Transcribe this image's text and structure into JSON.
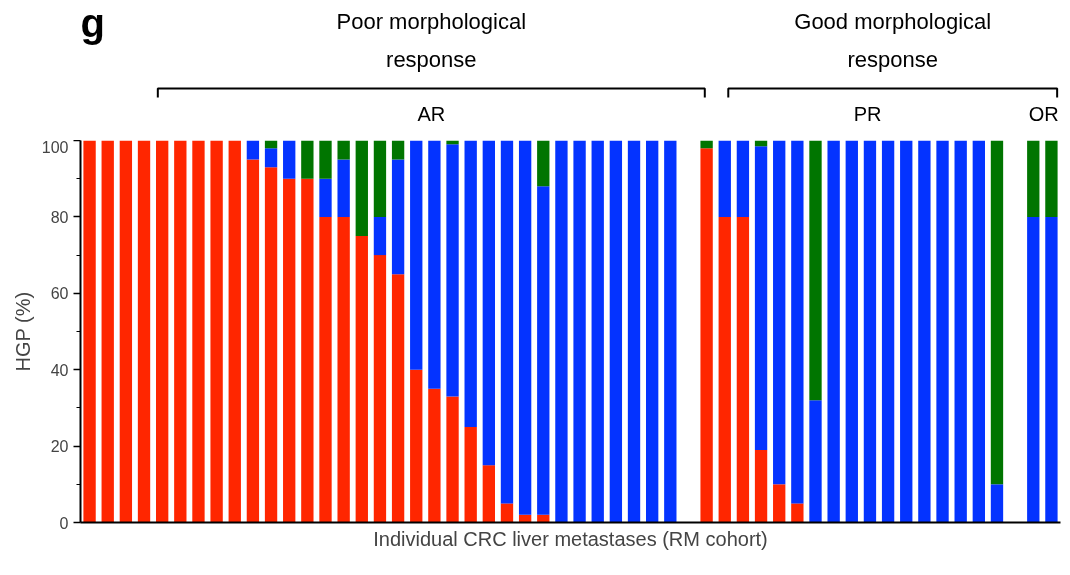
{
  "chart_data": {
    "type": "bar",
    "stacked": true,
    "xlabel": "Individual CRC liver metastases (RM cohort)",
    "ylabel": "HGP (%)",
    "annotations": [
      "g",
      "Poor morphological\nresponse",
      "Good morphological\nresponse",
      "AR",
      "PR",
      "OR"
    ],
    "categories": [
      null,
      null,
      null,
      null,
      null,
      null,
      null,
      null,
      null,
      null,
      null,
      null,
      null,
      null,
      null,
      null,
      null,
      null,
      null,
      null,
      null,
      null,
      null,
      null,
      null,
      null,
      null,
      null,
      null,
      null,
      null,
      null,
      null,
      null,
      null,
      null,
      null,
      null,
      null,
      null,
      null,
      null,
      null,
      null,
      null,
      null,
      null,
      null,
      null,
      null,
      null,
      null,
      null,
      null
    ],
    "series": [
      {
        "color": "#ff2600",
        "values": [
          100,
          100,
          100,
          100,
          100,
          100,
          100,
          100,
          100,
          95,
          93,
          90,
          90,
          80,
          80,
          75,
          70,
          65,
          40,
          35,
          33,
          25,
          15,
          5,
          2,
          2,
          null,
          null,
          null,
          null,
          null,
          null,
          null,
          null,
          98,
          80,
          80,
          19,
          10,
          5,
          null,
          null,
          null,
          null,
          null,
          null,
          null,
          null,
          null,
          null,
          null,
          null,
          null,
          null
        ]
      },
      {
        "color": "#0433ff",
        "values": [
          null,
          null,
          null,
          null,
          null,
          null,
          null,
          null,
          null,
          5,
          5,
          10,
          null,
          10,
          15,
          null,
          10,
          30,
          60,
          65,
          66,
          75,
          85,
          95,
          98,
          86,
          100,
          100,
          100,
          100,
          100,
          100,
          100,
          null,
          null,
          20,
          20,
          79.5,
          90,
          95,
          32,
          100,
          100,
          100,
          100,
          100,
          100,
          100,
          100,
          100,
          10,
          null,
          80,
          80
        ]
      },
      {
        "color": "#007500",
        "values": [
          null,
          null,
          null,
          null,
          null,
          null,
          null,
          null,
          null,
          null,
          2,
          null,
          10,
          10,
          5,
          25,
          20,
          5,
          null,
          null,
          1,
          null,
          null,
          null,
          null,
          12,
          null,
          null,
          null,
          null,
          null,
          null,
          null,
          null,
          2,
          null,
          null,
          1.5,
          null,
          null,
          68,
          null,
          null,
          null,
          null,
          null,
          null,
          null,
          null,
          null,
          90,
          null,
          20,
          20
        ]
      }
    ],
    "ylim": [
      0,
      100
    ],
    "yticks": [
      0,
      {
        "value": 10,
        "label": null
      },
      20,
      {
        "value": 30,
        "label": null
      },
      40,
      {
        "value": 50,
        "label": null
      },
      60,
      {
        "value": 70,
        "label": null
      },
      80,
      {
        "value": 90,
        "label": null
      },
      100
    ],
    "tick_labels": "y",
    "grid": false
  }
}
